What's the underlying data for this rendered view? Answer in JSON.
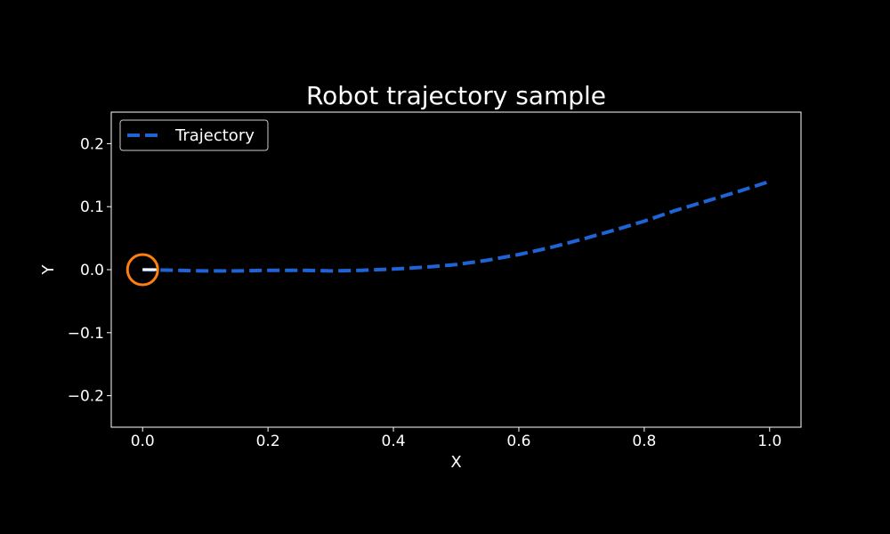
{
  "chart_data": {
    "type": "line",
    "title": "Robot trajectory sample",
    "xlabel": "X",
    "ylabel": "Y",
    "xlim": [
      -0.05,
      1.05
    ],
    "ylim": [
      -0.25,
      0.25
    ],
    "xticks": [
      0.0,
      0.2,
      0.4,
      0.6,
      0.8,
      1.0
    ],
    "xtick_labels": [
      "0.0",
      "0.2",
      "0.4",
      "0.6",
      "0.8",
      "1.0"
    ],
    "yticks": [
      -0.2,
      -0.1,
      0.0,
      0.1,
      0.2
    ],
    "ytick_labels": [
      "−0.2",
      "−0.1",
      "0.0",
      "0.1",
      "0.2"
    ],
    "grid": false,
    "legend_position": "top-left",
    "background_color": "#000000",
    "series": [
      {
        "name": "Trajectory",
        "color": "#1f63d4",
        "line_style": "dashed",
        "x": [
          0.0,
          0.05,
          0.1,
          0.15,
          0.2,
          0.25,
          0.3,
          0.35,
          0.4,
          0.45,
          0.5,
          0.55,
          0.6,
          0.65,
          0.7,
          0.75,
          0.8,
          0.85,
          0.9,
          0.95,
          1.0
        ],
        "y": [
          0.0,
          -0.001,
          -0.002,
          -0.002,
          -0.001,
          -0.001,
          -0.002,
          -0.001,
          0.001,
          0.004,
          0.008,
          0.015,
          0.024,
          0.035,
          0.048,
          0.062,
          0.077,
          0.094,
          0.109,
          0.124,
          0.14
        ]
      }
    ],
    "robot": {
      "x": 0.0,
      "y": 0.0,
      "heading_deg": 0,
      "body_color": "#ff7f0e",
      "heading_color": "#ffffff"
    }
  }
}
